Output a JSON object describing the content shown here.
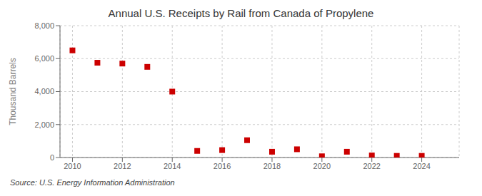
{
  "chart_data": {
    "type": "scatter",
    "title": "Annual U.S. Receipts by Rail from Canada of Propylene",
    "y_label": "Thousand Barrels",
    "annotations": [
      "Source: U.S. Energy Information Administration"
    ],
    "x": [
      2010,
      2011,
      2012,
      2013,
      2014,
      2015,
      2016,
      2017,
      2018,
      2019,
      2020,
      2021,
      2022,
      2023,
      2024
    ],
    "values": [
      6500,
      5750,
      5700,
      5500,
      4000,
      400,
      450,
      1050,
      350,
      500,
      75,
      350,
      125,
      100,
      100
    ],
    "color": "#cc0000",
    "marker": "square",
    "xlim": [
      2009.5,
      2025.5
    ],
    "xticks": [
      2010,
      2012,
      2014,
      2016,
      2018,
      2020,
      2022,
      2024
    ],
    "ylim": [
      0,
      8000
    ],
    "yticks": [
      0,
      {
        "value": 2000,
        "label": "2,000"
      },
      {
        "value": 4000,
        "label": "4,000"
      },
      {
        "value": 6000,
        "label": "6,000"
      },
      {
        "value": 8000,
        "label": "8,000"
      }
    ],
    "grid": true
  }
}
